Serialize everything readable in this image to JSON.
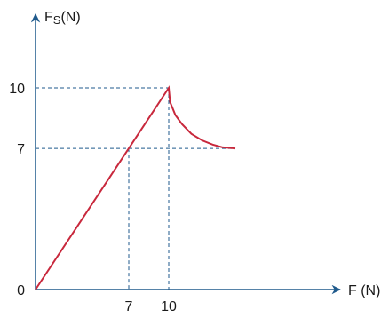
{
  "chart_data": {
    "type": "line",
    "title": "",
    "xlabel": "F (N)",
    "ylabel": {
      "main": "F",
      "sub": "S",
      "unit": "(N)"
    },
    "origin_label": "0",
    "xlim": [
      0,
      20
    ],
    "ylim": [
      0,
      14.5
    ],
    "x_ticks": [
      7,
      10
    ],
    "x_tick_labels": [
      "7",
      "10"
    ],
    "y_ticks": [
      7,
      10
    ],
    "y_tick_labels": [
      "7",
      "10"
    ],
    "grid": false,
    "guide_lines": [
      {
        "x": 7,
        "y": 7
      },
      {
        "x": 10,
        "y": 10
      }
    ],
    "series": [
      {
        "points": [
          [
            0,
            0
          ],
          [
            7,
            7
          ],
          [
            10,
            10
          ],
          [
            10.1,
            9.3
          ],
          [
            10.5,
            8.65
          ],
          [
            11.0,
            8.2
          ],
          [
            11.7,
            7.72
          ],
          [
            12.5,
            7.4
          ],
          [
            13.3,
            7.19
          ],
          [
            14,
            7.06
          ],
          [
            15,
            7.0
          ]
        ]
      }
    ],
    "colors": {
      "axis": "#1f5a8c",
      "guide": "#1f5a8c",
      "line": "#c8283c",
      "text": "#1a1a1a"
    }
  }
}
